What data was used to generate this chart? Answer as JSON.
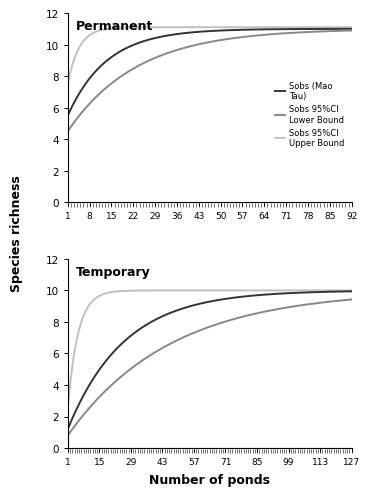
{
  "permanent": {
    "x_max": 92,
    "sobs_asym": 11.0,
    "sobs_k": 0.08,
    "lower_asym": 11.0,
    "lower_k": 0.045,
    "upper_asym": 11.1,
    "upper_k": 0.28,
    "y0_sobs": 5.5,
    "y0_lower": 4.5,
    "y0_upper": 7.5,
    "xticks": [
      1,
      8,
      15,
      22,
      29,
      36,
      43,
      50,
      57,
      64,
      71,
      78,
      85,
      92
    ],
    "title": "Permanent"
  },
  "temporary": {
    "x_max": 127,
    "sobs_asym": 10.0,
    "sobs_k": 0.04,
    "lower_asym": 10.0,
    "lower_k": 0.022,
    "upper_asym": 10.0,
    "upper_k": 0.22,
    "y0_sobs": 1.2,
    "y0_lower": 0.8,
    "y0_upper": 2.5,
    "xticks": [
      1,
      15,
      29,
      43,
      57,
      71,
      85,
      99,
      113,
      127
    ],
    "title": "Temporary"
  },
  "ylabel": "Species richness",
  "xlabel": "Number of ponds",
  "ylim": [
    0,
    12
  ],
  "ylim_temp": [
    0,
    12
  ],
  "colors": {
    "sobs": "#333333",
    "lower": "#888888",
    "upper": "#c0c0c0"
  },
  "legend_labels": [
    "Sobs (Mao\nTau)",
    "Sobs 95%CI\nLower Bound",
    "Sobs 95%CI\nUpper Bound"
  ],
  "linewidth": 1.4
}
